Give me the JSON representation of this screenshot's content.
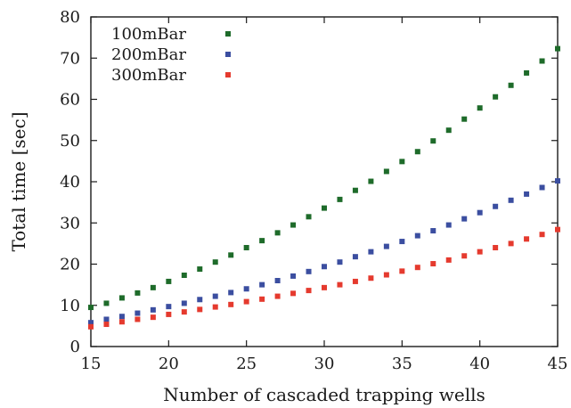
{
  "chart_data": {
    "type": "scatter",
    "xlabel": "Number of cascaded trapping wells",
    "ylabel": "Total time [sec]",
    "xlim": [
      15,
      45
    ],
    "ylim": [
      0,
      80
    ],
    "xticks": [
      "15",
      "20",
      "25",
      "30",
      "35",
      "40",
      "45"
    ],
    "yticks": [
      "0",
      "10",
      "20",
      "30",
      "40",
      "50",
      "60",
      "70",
      "80"
    ],
    "grid": false,
    "legend_position": "top-left",
    "x": [
      15,
      16,
      17,
      18,
      19,
      20,
      21,
      22,
      23,
      24,
      25,
      26,
      27,
      28,
      29,
      30,
      31,
      32,
      33,
      34,
      35,
      36,
      37,
      38,
      39,
      40,
      41,
      42,
      43,
      44,
      45
    ],
    "series": [
      {
        "name": "100mBar",
        "color": "#1e6b2a",
        "values": [
          9.5,
          10.5,
          11.8,
          13.0,
          14.3,
          15.8,
          17.3,
          18.8,
          20.5,
          22.2,
          24.0,
          25.7,
          27.6,
          29.5,
          31.5,
          33.6,
          35.7,
          37.9,
          40.1,
          42.5,
          44.9,
          47.3,
          49.9,
          52.5,
          55.2,
          57.9,
          60.6,
          63.4,
          66.4,
          69.3,
          72.3
        ]
      },
      {
        "name": "200mBar",
        "color": "#3b4ea0",
        "values": [
          5.8,
          6.6,
          7.3,
          8.1,
          8.9,
          9.7,
          10.5,
          11.4,
          12.2,
          13.1,
          14.0,
          15.0,
          16.0,
          17.1,
          18.2,
          19.4,
          20.5,
          21.8,
          23.0,
          24.3,
          25.5,
          26.9,
          28.1,
          29.5,
          31.0,
          32.5,
          34.0,
          35.5,
          37.0,
          38.6,
          40.2
        ]
      },
      {
        "name": "300mBar",
        "color": "#e53a2e",
        "values": [
          4.8,
          5.4,
          6.0,
          6.6,
          7.1,
          7.8,
          8.4,
          9.0,
          9.6,
          10.2,
          10.9,
          11.5,
          12.2,
          12.9,
          13.6,
          14.3,
          15.0,
          15.8,
          16.6,
          17.4,
          18.3,
          19.2,
          20.1,
          21.0,
          22.0,
          23.0,
          24.0,
          25.0,
          26.1,
          27.2,
          28.4
        ]
      }
    ]
  }
}
